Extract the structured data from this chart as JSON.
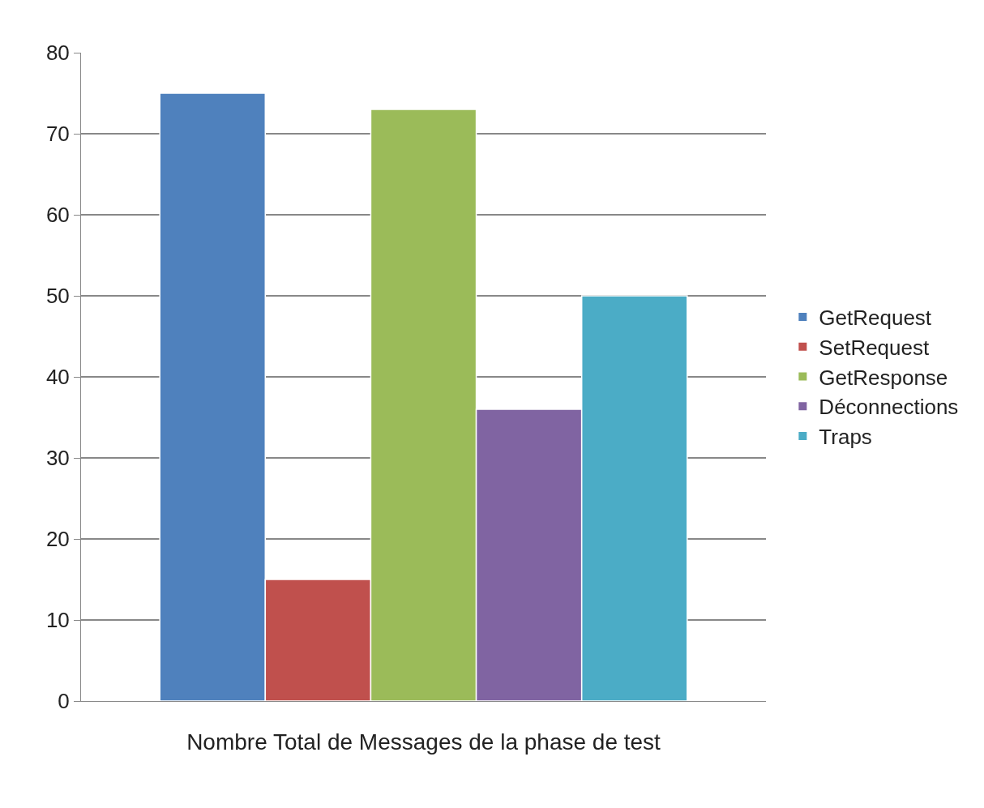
{
  "chart_data": {
    "type": "bar",
    "categories": [
      "Nombre Total de Messages de la phase de test"
    ],
    "series": [
      {
        "name": "GetRequest",
        "color": "#4f81bd",
        "values": [
          75
        ]
      },
      {
        "name": "SetRequest",
        "color": "#c0504d",
        "values": [
          15
        ]
      },
      {
        "name": "GetResponse",
        "color": "#9bbb59",
        "values": [
          73
        ]
      },
      {
        "name": "Déconnections",
        "color": "#8064a2",
        "values": [
          36
        ]
      },
      {
        "name": "Traps",
        "color": "#4bacc6",
        "values": [
          50
        ]
      }
    ],
    "ylim": [
      0,
      80
    ],
    "yticks": [
      0,
      10,
      20,
      30,
      40,
      50,
      60,
      70,
      80
    ],
    "grid": "y",
    "legend": "right"
  }
}
